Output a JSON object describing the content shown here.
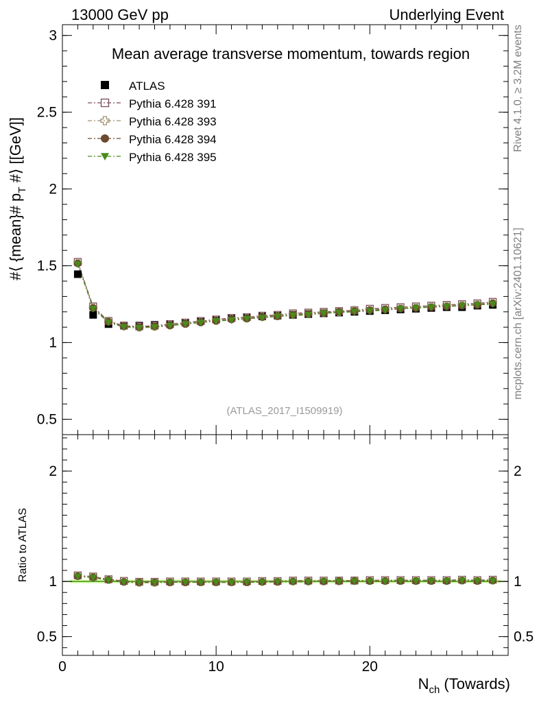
{
  "header": {
    "left": "13000 GeV pp",
    "right": "Underlying Event"
  },
  "side_texts": {
    "rivet": "Rivet 4.1.0, ≥ 3.2M events",
    "mcplots": "mcplots.cern.ch [arXiv:2401.10621]"
  },
  "colors": {
    "atlas": "#000000",
    "p391": "#7a4a5a",
    "p393": "#a09070",
    "p394": "#6b4a2e",
    "p395": "#4a8a1a",
    "ratio_band": "#ccff99",
    "ratio_line": "#4a8a1a"
  },
  "chart_data": [
    {
      "type": "scatter",
      "title": "Mean average transverse momentum, towards region",
      "watermark": "(ATLAS_2017_I1509919)",
      "xlabel_main": "N",
      "xlabel_sub": "ch",
      "xlabel_rest": " (Towards)",
      "ylabel": "#⟨ {mean}# p_T #⟩ [[GeV]]",
      "ylabel_parts": {
        "a": "#⟨ {mean}# p",
        "sub": "T",
        "b": " #⟩ [[GeV]]"
      },
      "xlim": [
        0,
        29
      ],
      "ylim": [
        0.4,
        3.07
      ],
      "yticks": [
        0.5,
        1,
        1.5,
        2,
        2.5,
        3
      ],
      "ytick_labels": [
        "0.5",
        "1",
        "1.5",
        "2",
        "2.5",
        "3"
      ],
      "x": [
        1,
        2,
        3,
        4,
        5,
        6,
        7,
        8,
        9,
        10,
        11,
        12,
        13,
        14,
        15,
        16,
        17,
        18,
        19,
        20,
        21,
        22,
        23,
        24,
        25,
        26,
        27,
        28
      ],
      "series": [
        {
          "name": "ATLAS",
          "marker": "square-filled",
          "values": [
            1.445,
            1.18,
            1.12,
            1.11,
            1.11,
            1.115,
            1.12,
            1.13,
            1.14,
            1.15,
            1.16,
            1.165,
            1.17,
            1.175,
            1.18,
            1.185,
            1.19,
            1.195,
            1.2,
            1.205,
            1.21,
            1.215,
            1.22,
            1.225,
            1.23,
            1.23,
            1.24,
            1.245
          ]
        },
        {
          "name": "Pythia 6.428 391",
          "marker": "square-open",
          "values": [
            1.525,
            1.235,
            1.14,
            1.11,
            1.105,
            1.11,
            1.12,
            1.13,
            1.14,
            1.15,
            1.16,
            1.165,
            1.175,
            1.18,
            1.19,
            1.195,
            1.2,
            1.205,
            1.21,
            1.22,
            1.225,
            1.23,
            1.235,
            1.24,
            1.245,
            1.25,
            1.255,
            1.265
          ]
        },
        {
          "name": "Pythia 6.428 393",
          "marker": "cross-open",
          "values": [
            1.52,
            1.23,
            1.14,
            1.11,
            1.1,
            1.105,
            1.115,
            1.125,
            1.135,
            1.145,
            1.155,
            1.16,
            1.17,
            1.175,
            1.185,
            1.19,
            1.195,
            1.2,
            1.21,
            1.215,
            1.22,
            1.225,
            1.23,
            1.235,
            1.24,
            1.245,
            1.25,
            1.26
          ]
        },
        {
          "name": "Pythia 6.428 394",
          "marker": "circle-filled",
          "values": [
            1.515,
            1.225,
            1.135,
            1.105,
            1.1,
            1.105,
            1.11,
            1.12,
            1.13,
            1.14,
            1.15,
            1.155,
            1.165,
            1.17,
            1.18,
            1.185,
            1.19,
            1.2,
            1.205,
            1.21,
            1.215,
            1.22,
            1.225,
            1.23,
            1.235,
            1.24,
            1.245,
            1.255
          ]
        },
        {
          "name": "Pythia 6.428 395",
          "marker": "triangle-down-filled",
          "values": [
            1.51,
            1.22,
            1.13,
            1.1,
            1.095,
            1.1,
            1.11,
            1.12,
            1.13,
            1.14,
            1.145,
            1.155,
            1.16,
            1.17,
            1.175,
            1.18,
            1.19,
            1.195,
            1.2,
            1.205,
            1.21,
            1.22,
            1.225,
            1.23,
            1.235,
            1.24,
            1.245,
            1.25
          ]
        }
      ]
    },
    {
      "type": "scatter",
      "title": "Ratio to ATLAS",
      "ylabel": "Ratio to ATLAS",
      "xlim": [
        0,
        29
      ],
      "ylim": [
        0.33,
        2.33
      ],
      "yticks": [
        0.5,
        1,
        2
      ],
      "ytick_labels": [
        "0.5",
        "1",
        "2"
      ],
      "xticks": [
        0,
        10,
        20
      ],
      "xtick_labels": [
        "0",
        "10",
        "20"
      ],
      "x": [
        1,
        2,
        3,
        4,
        5,
        6,
        7,
        8,
        9,
        10,
        11,
        12,
        13,
        14,
        15,
        16,
        17,
        18,
        19,
        20,
        21,
        22,
        23,
        24,
        25,
        26,
        27,
        28
      ],
      "series": [
        {
          "name": "Pythia 6.428 391",
          "values": [
            1.055,
            1.045,
            1.02,
            1.005,
            0.997,
            0.997,
            1.0,
            1.0,
            1.0,
            1.0,
            1.0,
            1.0,
            1.004,
            1.004,
            1.008,
            1.008,
            1.008,
            1.008,
            1.008,
            1.012,
            1.012,
            1.012,
            1.012,
            1.012,
            1.012,
            1.016,
            1.012,
            1.016
          ]
        },
        {
          "name": "Pythia 6.428 393",
          "values": [
            1.052,
            1.042,
            1.018,
            1.0,
            0.992,
            0.992,
            0.995,
            0.995,
            0.996,
            0.996,
            0.996,
            0.996,
            1.0,
            1.0,
            1.004,
            1.004,
            1.004,
            1.004,
            1.008,
            1.008,
            1.008,
            1.008,
            1.008,
            1.008,
            1.008,
            1.012,
            1.008,
            1.012
          ]
        },
        {
          "name": "Pythia 6.428 394",
          "values": [
            1.048,
            1.038,
            1.014,
            0.996,
            0.992,
            0.992,
            0.992,
            0.992,
            0.992,
            0.992,
            0.992,
            0.992,
            0.996,
            0.996,
            1.0,
            1.0,
            1.0,
            1.004,
            1.004,
            1.004,
            1.004,
            1.004,
            1.004,
            1.004,
            1.004,
            1.008,
            1.004,
            1.008
          ]
        },
        {
          "name": "Pythia 6.428 395",
          "values": [
            1.045,
            1.034,
            1.01,
            0.992,
            0.988,
            0.988,
            0.992,
            0.992,
            0.992,
            0.992,
            0.988,
            0.992,
            0.992,
            0.996,
            0.996,
            0.996,
            1.0,
            1.0,
            1.0,
            1.0,
            1.0,
            1.004,
            1.004,
            1.004,
            1.004,
            1.008,
            1.004,
            1.004
          ]
        }
      ]
    }
  ]
}
